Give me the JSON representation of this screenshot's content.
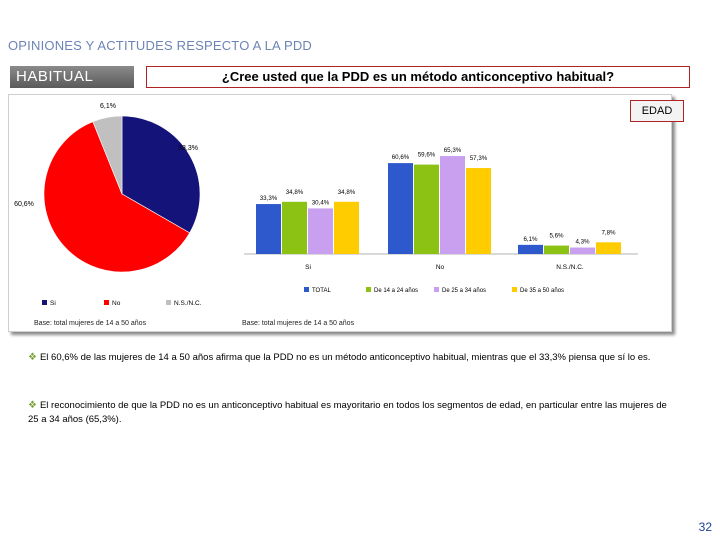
{
  "header": {
    "title": "OPINIONES Y ACTITUDES RESPECTO A LA PDD"
  },
  "section_label": "HABITUAL",
  "question": "¿Cree usted que la PDD es un método anticonceptivo habitual?",
  "edad_label": "EDAD",
  "colors": {
    "si": "#13137a",
    "no": "#ff0000",
    "ns": "#c0c0c0",
    "total": "#2e59cc",
    "g14_24": "#8cc214",
    "g25_34": "#c9a0f0",
    "g35_50": "#ffcc00"
  },
  "chart_data": [
    {
      "type": "pie",
      "slices": [
        {
          "name": "Si",
          "value": 33.3,
          "label": "33,3%"
        },
        {
          "name": "No",
          "value": 60.6,
          "label": "60,6%"
        },
        {
          "name": "N.S./N.C.",
          "value": 6.1,
          "label": "6,1%"
        }
      ],
      "legend": [
        "Si",
        "No",
        "N.S./N.C."
      ],
      "note": "Base: total mujeres de 14 a 50 años"
    },
    {
      "type": "bar",
      "categories": [
        "Si",
        "No",
        "N.S./N.C."
      ],
      "series": [
        {
          "name": "TOTAL",
          "values": [
            33.3,
            60.6,
            6.1
          ],
          "labels": [
            "33,3%",
            "60,6%",
            "6,1%"
          ]
        },
        {
          "name": "De 14 a 24 años",
          "values": [
            34.8,
            59.6,
            5.6
          ],
          "labels": [
            "34,8%",
            "59,6%",
            "5,6%"
          ]
        },
        {
          "name": "De 25 a 34 años",
          "values": [
            30.4,
            65.3,
            4.3
          ],
          "labels": [
            "30,4%",
            "65,3%",
            "4,3%"
          ]
        },
        {
          "name": "De 35 a 50 años",
          "values": [
            34.8,
            57.3,
            7.8
          ],
          "labels": [
            "34,8%",
            "57,3%",
            "7,8%"
          ]
        }
      ],
      "ylim": [
        0,
        70
      ],
      "legend_position": "bottom",
      "note": "Base: total mujeres de 14 a 50 años"
    }
  ],
  "bullets": [
    "El 60,6% de las mujeres de 14 a 50 años afirma que la PDD no es un método anticonceptivo habitual, mientras que el 33,3% piensa que sí lo es.",
    "El reconocimiento de que la PDD no es un anticonceptivo habitual es mayoritario en todos los segmentos de edad, en particular entre las mujeres de 25 a 34 años (65,3%)."
  ],
  "page_number": "32"
}
